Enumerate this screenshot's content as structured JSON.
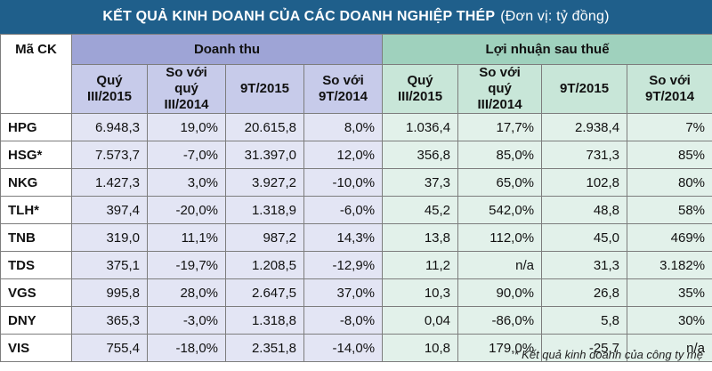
{
  "title": "KẾT QUẢ KINH DOANH CỦA CÁC DOANH NGHIỆP THÉP",
  "unit": "(Đơn vị: tỷ đồng)",
  "header": {
    "code": "Mã CK",
    "revenue_group": "Doanh thu",
    "profit_group": "Lợi nhuận sau thuế",
    "sub": {
      "q": "Quý III/2015",
      "vs_q": "So với quý III/2014",
      "nine": "9T/2015",
      "vs_nine": "So với 9T/2014"
    }
  },
  "rows": [
    {
      "code": "HPG",
      "r": [
        "6.948,3",
        "19,0%",
        "20.615,8",
        "8,0%"
      ],
      "p": [
        "1.036,4",
        "17,7%",
        "2.938,4",
        "7%"
      ]
    },
    {
      "code": "HSG*",
      "r": [
        "7.573,7",
        "-7,0%",
        "31.397,0",
        "12,0%"
      ],
      "p": [
        "356,8",
        "85,0%",
        "731,3",
        "85%"
      ]
    },
    {
      "code": "NKG",
      "r": [
        "1.427,3",
        "3,0%",
        "3.927,2",
        "-10,0%"
      ],
      "p": [
        "37,3",
        "65,0%",
        "102,8",
        "80%"
      ]
    },
    {
      "code": "TLH*",
      "r": [
        "397,4",
        "-20,0%",
        "1.318,9",
        "-6,0%"
      ],
      "p": [
        "45,2",
        "542,0%",
        "48,8",
        "58%"
      ]
    },
    {
      "code": "TNB",
      "r": [
        "319,0",
        "11,1%",
        "987,2",
        "14,3%"
      ],
      "p": [
        "13,8",
        "112,0%",
        "45,0",
        "469%"
      ]
    },
    {
      "code": "TDS",
      "r": [
        "375,1",
        "-19,7%",
        "1.208,5",
        "-12,9%"
      ],
      "p": [
        "11,2",
        "n/a",
        "31,3",
        "3.182%"
      ]
    },
    {
      "code": "VGS",
      "r": [
        "995,8",
        "28,0%",
        "2.647,5",
        "37,0%"
      ],
      "p": [
        "10,3",
        "90,0%",
        "26,8",
        "35%"
      ]
    },
    {
      "code": "DNY",
      "r": [
        "365,3",
        "-3,0%",
        "1.318,8",
        "-8,0%"
      ],
      "p": [
        "0,04",
        "-86,0%",
        "5,8",
        "30%"
      ]
    },
    {
      "code": "VIS",
      "r": [
        "755,4",
        "-18,0%",
        "2.351,8",
        "-14,0%"
      ],
      "p": [
        "10,8",
        "179,0%",
        "-25,7",
        "n/a"
      ]
    }
  ],
  "footnote": "* Kết quả kinh doanh của công ty mẹ"
}
